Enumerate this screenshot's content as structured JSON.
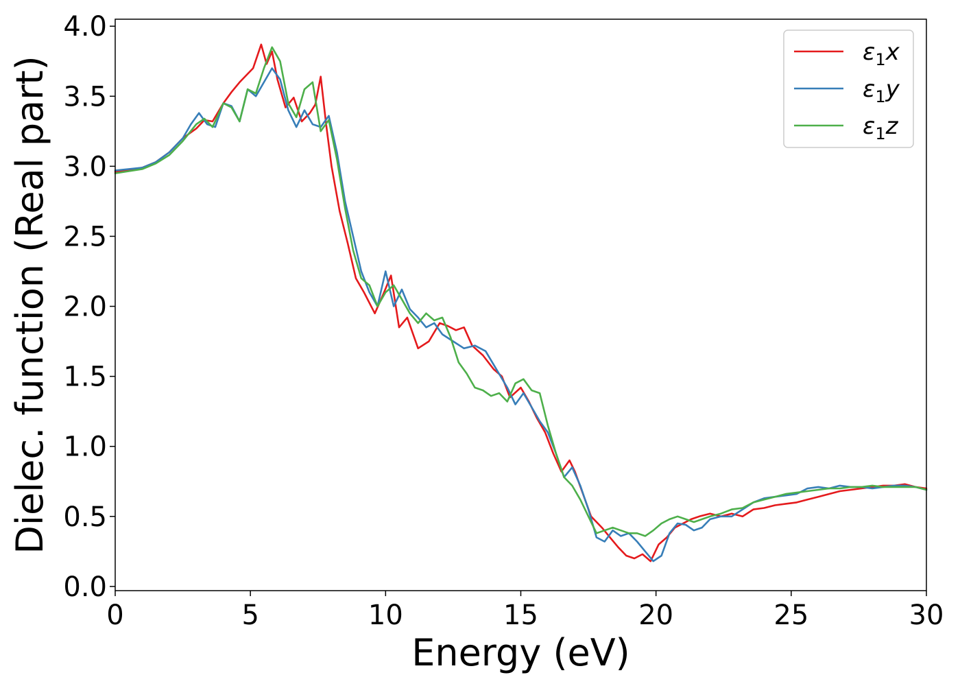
{
  "chart_data": {
    "type": "line",
    "title": "",
    "xlabel": "Energy (eV)",
    "ylabel": "Dielec. function (Real part)",
    "xlim": [
      0,
      30
    ],
    "ylim": [
      -0.03,
      4.05
    ],
    "xticks": [
      0,
      5,
      10,
      15,
      20,
      25,
      30
    ],
    "xtick_labels": [
      "0",
      "5",
      "10",
      "15",
      "20",
      "25",
      "30"
    ],
    "yticks": [
      0.0,
      0.5,
      1.0,
      1.5,
      2.0,
      2.5,
      3.0,
      3.5,
      4.0
    ],
    "ytick_labels": [
      "0.0",
      "0.5",
      "1.0",
      "1.5",
      "2.0",
      "2.5",
      "3.0",
      "3.5",
      "4.0"
    ],
    "grid": false,
    "legend_position": "top-right",
    "series": [
      {
        "name": "ε₁x",
        "legend_base": "ε",
        "legend_sub": "1",
        "legend_var": "x",
        "color": "#e41a1c",
        "x": [
          0,
          1,
          1.5,
          2,
          2.5,
          3,
          3.3,
          3.6,
          4,
          4.3,
          4.6,
          4.9,
          5.1,
          5.4,
          5.6,
          5.8,
          6,
          6.3,
          6.6,
          6.9,
          7.2,
          7.4,
          7.6,
          7.8,
          8,
          8.3,
          8.6,
          8.9,
          9.2,
          9.6,
          9.9,
          10.2,
          10.5,
          10.8,
          11.2,
          11.6,
          12,
          12.3,
          12.6,
          12.9,
          13.2,
          13.6,
          14,
          14.3,
          14.6,
          15,
          15.3,
          15.6,
          15.9,
          16.2,
          16.5,
          16.8,
          17,
          17.3,
          17.6,
          18,
          18.3,
          18.6,
          18.9,
          19.2,
          19.5,
          19.8,
          20.1,
          20.4,
          20.7,
          21,
          21.3,
          21.6,
          22,
          22.4,
          22.8,
          23.2,
          23.6,
          24,
          24.4,
          24.8,
          25.2,
          25.6,
          26,
          26.4,
          26.8,
          27.2,
          27.6,
          28,
          28.4,
          28.8,
          29.2,
          29.6,
          30
        ],
        "y": [
          2.96,
          2.99,
          3.03,
          3.1,
          3.2,
          3.27,
          3.33,
          3.32,
          3.45,
          3.53,
          3.6,
          3.66,
          3.7,
          3.87,
          3.73,
          3.82,
          3.62,
          3.42,
          3.49,
          3.32,
          3.38,
          3.44,
          3.64,
          3.3,
          3.0,
          2.68,
          2.45,
          2.2,
          2.1,
          1.95,
          2.08,
          2.22,
          1.85,
          1.92,
          1.7,
          1.75,
          1.88,
          1.86,
          1.83,
          1.85,
          1.72,
          1.65,
          1.55,
          1.5,
          1.35,
          1.42,
          1.32,
          1.2,
          1.1,
          0.95,
          0.82,
          0.9,
          0.82,
          0.66,
          0.5,
          0.42,
          0.35,
          0.28,
          0.22,
          0.2,
          0.23,
          0.18,
          0.3,
          0.35,
          0.42,
          0.45,
          0.48,
          0.5,
          0.52,
          0.5,
          0.52,
          0.5,
          0.55,
          0.56,
          0.58,
          0.59,
          0.6,
          0.62,
          0.64,
          0.66,
          0.68,
          0.69,
          0.7,
          0.71,
          0.72,
          0.72,
          0.73,
          0.71,
          0.7
        ]
      },
      {
        "name": "ε₁y",
        "legend_base": "ε",
        "legend_sub": "1",
        "legend_var": "y",
        "color": "#377eb8",
        "x": [
          0,
          1,
          1.5,
          2,
          2.5,
          2.8,
          3.1,
          3.4,
          3.7,
          4,
          4.3,
          4.6,
          4.9,
          5.2,
          5.5,
          5.8,
          6.1,
          6.4,
          6.7,
          7,
          7.3,
          7.6,
          7.9,
          8.2,
          8.5,
          8.8,
          9.1,
          9.4,
          9.7,
          10,
          10.3,
          10.6,
          10.9,
          11.2,
          11.5,
          11.8,
          12.1,
          12.5,
          12.9,
          13.3,
          13.7,
          14.1,
          14.5,
          14.8,
          15.1,
          15.4,
          15.7,
          16,
          16.3,
          16.6,
          16.9,
          17.2,
          17.5,
          17.8,
          18.1,
          18.4,
          18.7,
          19,
          19.3,
          19.6,
          19.9,
          20.2,
          20.5,
          20.8,
          21.1,
          21.4,
          21.7,
          22,
          22.4,
          22.8,
          23.2,
          23.6,
          24,
          24.4,
          24.8,
          25.2,
          25.6,
          26,
          26.4,
          26.8,
          27.2,
          27.6,
          28,
          28.4,
          28.8,
          29.2,
          29.6,
          30
        ],
        "y": [
          2.97,
          2.99,
          3.03,
          3.1,
          3.2,
          3.3,
          3.38,
          3.3,
          3.28,
          3.45,
          3.43,
          3.32,
          3.55,
          3.5,
          3.6,
          3.7,
          3.62,
          3.4,
          3.28,
          3.4,
          3.3,
          3.28,
          3.36,
          3.1,
          2.75,
          2.5,
          2.25,
          2.1,
          2.0,
          2.25,
          2.0,
          2.12,
          1.98,
          1.92,
          1.85,
          1.88,
          1.8,
          1.75,
          1.7,
          1.72,
          1.68,
          1.55,
          1.42,
          1.3,
          1.38,
          1.28,
          1.18,
          1.1,
          0.95,
          0.78,
          0.85,
          0.72,
          0.55,
          0.35,
          0.32,
          0.4,
          0.36,
          0.38,
          0.32,
          0.25,
          0.18,
          0.22,
          0.38,
          0.45,
          0.44,
          0.4,
          0.42,
          0.48,
          0.5,
          0.5,
          0.55,
          0.6,
          0.63,
          0.64,
          0.65,
          0.66,
          0.7,
          0.71,
          0.7,
          0.72,
          0.71,
          0.71,
          0.7,
          0.71,
          0.72,
          0.72,
          0.71,
          0.69
        ]
      },
      {
        "name": "ε₁z",
        "legend_base": "ε",
        "legend_sub": "1",
        "legend_var": "z",
        "color": "#4daf4a",
        "x": [
          0,
          1,
          1.5,
          2,
          2.5,
          3,
          3.3,
          3.6,
          4,
          4.3,
          4.6,
          4.9,
          5.2,
          5.5,
          5.8,
          6.1,
          6.4,
          6.7,
          7,
          7.3,
          7.6,
          7.9,
          8.2,
          8.5,
          8.8,
          9.1,
          9.4,
          9.7,
          10,
          10.3,
          10.6,
          10.9,
          11.2,
          11.5,
          11.8,
          12.1,
          12.4,
          12.7,
          13,
          13.3,
          13.6,
          13.9,
          14.2,
          14.5,
          14.8,
          15.1,
          15.4,
          15.7,
          16,
          16.3,
          16.6,
          16.9,
          17.2,
          17.5,
          17.8,
          18.1,
          18.4,
          18.7,
          19,
          19.3,
          19.6,
          19.9,
          20.2,
          20.5,
          20.8,
          21.1,
          21.4,
          21.7,
          22,
          22.4,
          22.8,
          23.2,
          23.6,
          24,
          24.4,
          24.8,
          25.2,
          25.6,
          26,
          26.4,
          26.8,
          27.2,
          27.6,
          28,
          28.4,
          28.8,
          29.2,
          29.6,
          30
        ],
        "y": [
          2.95,
          2.98,
          3.02,
          3.08,
          3.18,
          3.3,
          3.34,
          3.28,
          3.45,
          3.42,
          3.32,
          3.55,
          3.52,
          3.7,
          3.85,
          3.75,
          3.45,
          3.35,
          3.55,
          3.6,
          3.25,
          3.33,
          3.05,
          2.7,
          2.4,
          2.2,
          2.15,
          2.0,
          2.1,
          2.15,
          2.05,
          1.95,
          1.88,
          1.95,
          1.9,
          1.92,
          1.78,
          1.6,
          1.52,
          1.42,
          1.4,
          1.36,
          1.38,
          1.32,
          1.45,
          1.48,
          1.4,
          1.38,
          1.15,
          0.95,
          0.78,
          0.72,
          0.62,
          0.5,
          0.38,
          0.4,
          0.42,
          0.4,
          0.38,
          0.38,
          0.36,
          0.4,
          0.45,
          0.48,
          0.5,
          0.48,
          0.46,
          0.48,
          0.5,
          0.52,
          0.55,
          0.56,
          0.6,
          0.62,
          0.64,
          0.66,
          0.67,
          0.68,
          0.69,
          0.7,
          0.7,
          0.71,
          0.71,
          0.72,
          0.71,
          0.71,
          0.71,
          0.71,
          0.69
        ]
      }
    ]
  }
}
